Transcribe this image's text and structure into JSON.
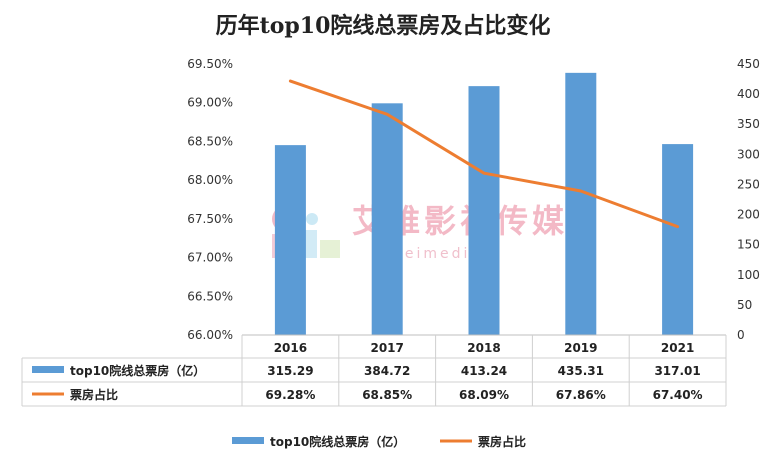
{
  "chart_data": {
    "type": "bar+line",
    "title": "历年top10院线总票房及占比变化",
    "categories": [
      "2016",
      "2017",
      "2018",
      "2019",
      "2021"
    ],
    "left_axis": {
      "ticks": [
        "66.00%",
        "66.50%",
        "67.00%",
        "67.50%",
        "68.00%",
        "68.50%",
        "69.00%",
        "69.50%"
      ],
      "min": 66.0,
      "max": 69.5
    },
    "right_axis": {
      "ticks": [
        "0",
        "50",
        "100",
        "150",
        "200",
        "250",
        "300",
        "350",
        "400",
        "450"
      ],
      "min": 0,
      "max": 450
    },
    "series": [
      {
        "name": "top10院线总票房（亿）",
        "type": "bar",
        "axis": "left",
        "color": "#5b9bd5",
        "values": [
          315.29,
          384.72,
          413.24,
          435.31,
          317.01
        ],
        "labels": [
          "315.29",
          "384.72",
          "413.24",
          "435.31",
          "317.01"
        ]
      },
      {
        "name": "票房占比",
        "type": "line",
        "axis": "right",
        "color": "#ed7d31",
        "values": [
          69.28,
          68.85,
          68.09,
          67.86,
          67.4
        ],
        "labels": [
          "69.28%",
          "68.85%",
          "68.09%",
          "67.86%",
          "67.40%"
        ]
      }
    ],
    "data_table": true,
    "grid": false,
    "legend_position": "bottom",
    "watermark": {
      "text": "艾维影视传媒",
      "subtext": "aiweimedia"
    }
  }
}
